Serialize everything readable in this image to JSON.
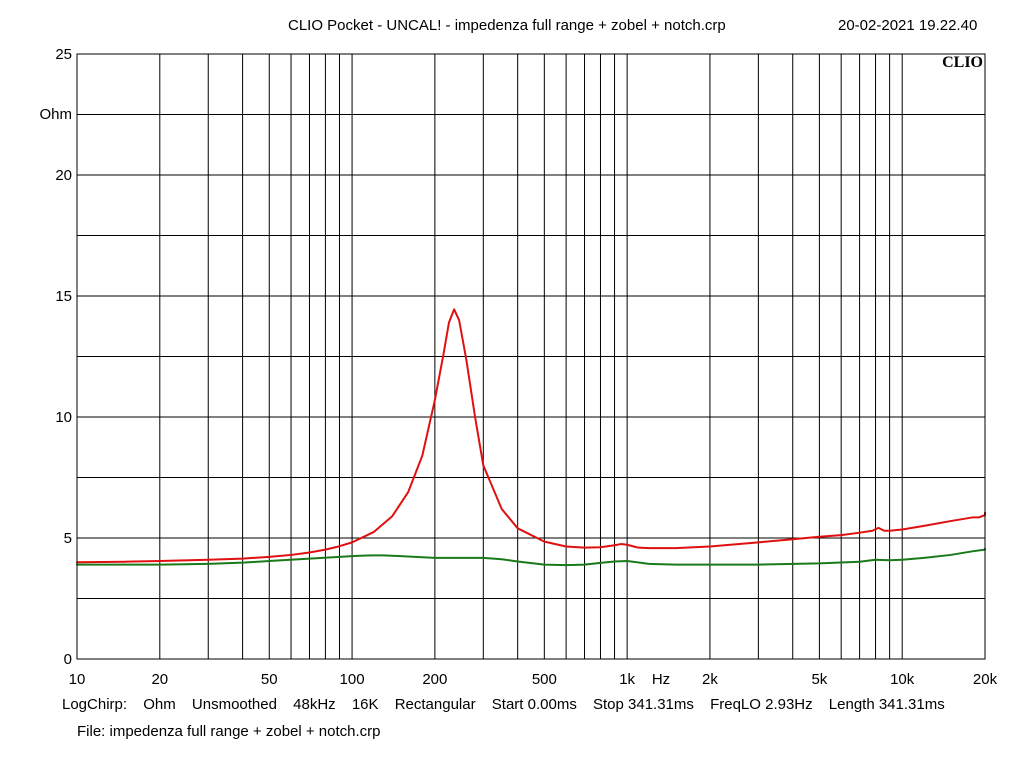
{
  "header": {
    "title": "CLIO Pocket - UNCAL! - impedenza full range + zobel + notch.crp",
    "datetime": "20-02-2021 19.22.40"
  },
  "footer": {
    "params": [
      "LogChirp:",
      "Ohm",
      "Unsmoothed",
      "48kHz",
      "16K",
      "Rectangular",
      "Start 0.00ms",
      "Stop 341.31ms",
      "FreqLO 2.93Hz",
      "Length 341.31ms"
    ],
    "file": "File: impedenza full range + zobel + notch.crp"
  },
  "colors": {
    "background": "#ffffff",
    "grid": "#000000",
    "red_curve": "#e01010",
    "green_curve": "#1a7a1a"
  },
  "chart_data": {
    "type": "line",
    "logo": "CLIO",
    "xlabel": "Hz",
    "ylabel": "Ohm",
    "xscale": "log",
    "xlim": [
      10,
      20000
    ],
    "ylim": [
      0,
      25
    ],
    "grid": true,
    "x_ticks": [
      {
        "value": 10,
        "label": "10"
      },
      {
        "value": 20,
        "label": "20"
      },
      {
        "value": 50,
        "label": "50"
      },
      {
        "value": 100,
        "label": "100"
      },
      {
        "value": 200,
        "label": "200"
      },
      {
        "value": 500,
        "label": "500"
      },
      {
        "value": 1000,
        "label": "1k"
      },
      {
        "value": 2000,
        "label": "2k"
      },
      {
        "value": 5000,
        "label": "5k"
      },
      {
        "value": 10000,
        "label": "10k"
      },
      {
        "value": 20000,
        "label": "20k"
      }
    ],
    "y_ticks": [
      {
        "value": 0,
        "label": "0"
      },
      {
        "value": 5,
        "label": "5"
      },
      {
        "value": 10,
        "label": "10"
      },
      {
        "value": 15,
        "label": "15"
      },
      {
        "value": 20,
        "label": "20"
      },
      {
        "value": 25,
        "label": "25"
      }
    ],
    "series": [
      {
        "color": "#e01010",
        "x": [
          10,
          15,
          20,
          30,
          40,
          50,
          60,
          70,
          80,
          90,
          100,
          120,
          140,
          160,
          180,
          200,
          215,
          225,
          235,
          245,
          260,
          280,
          300,
          350,
          400,
          500,
          600,
          700,
          800,
          900,
          950,
          1000,
          1100,
          1200,
          1500,
          2000,
          3000,
          4000,
          5000,
          6000,
          7000,
          7800,
          8200,
          8600,
          9000,
          10000,
          12000,
          15000,
          18000,
          19000,
          20000,
          21000
        ],
        "y": [
          4.0,
          4.02,
          4.05,
          4.1,
          4.15,
          4.22,
          4.3,
          4.4,
          4.52,
          4.66,
          4.82,
          5.25,
          5.9,
          6.9,
          8.4,
          10.7,
          12.6,
          13.9,
          14.45,
          14.0,
          12.4,
          10.0,
          8.0,
          6.2,
          5.4,
          4.85,
          4.65,
          4.6,
          4.62,
          4.7,
          4.75,
          4.72,
          4.6,
          4.58,
          4.58,
          4.65,
          4.82,
          4.95,
          5.05,
          5.12,
          5.22,
          5.3,
          5.42,
          5.3,
          5.3,
          5.35,
          5.5,
          5.7,
          5.85,
          5.85,
          5.95,
          6.05
        ]
      },
      {
        "color": "#1a7a1a",
        "x": [
          10,
          20,
          30,
          40,
          50,
          70,
          90,
          100,
          110,
          120,
          130,
          150,
          200,
          300,
          350,
          400,
          500,
          600,
          700,
          800,
          900,
          1000,
          1200,
          1500,
          2000,
          3000,
          5000,
          7000,
          8000,
          9000,
          10000,
          12000,
          15000,
          18000,
          20000,
          21000
        ],
        "y": [
          3.9,
          3.9,
          3.93,
          3.98,
          4.05,
          4.15,
          4.22,
          4.25,
          4.27,
          4.28,
          4.28,
          4.25,
          4.18,
          4.18,
          4.12,
          4.03,
          3.9,
          3.88,
          3.9,
          3.97,
          4.03,
          4.05,
          3.93,
          3.9,
          3.9,
          3.9,
          3.95,
          4.02,
          4.1,
          4.08,
          4.1,
          4.18,
          4.3,
          4.45,
          4.52,
          4.55
        ]
      }
    ]
  }
}
